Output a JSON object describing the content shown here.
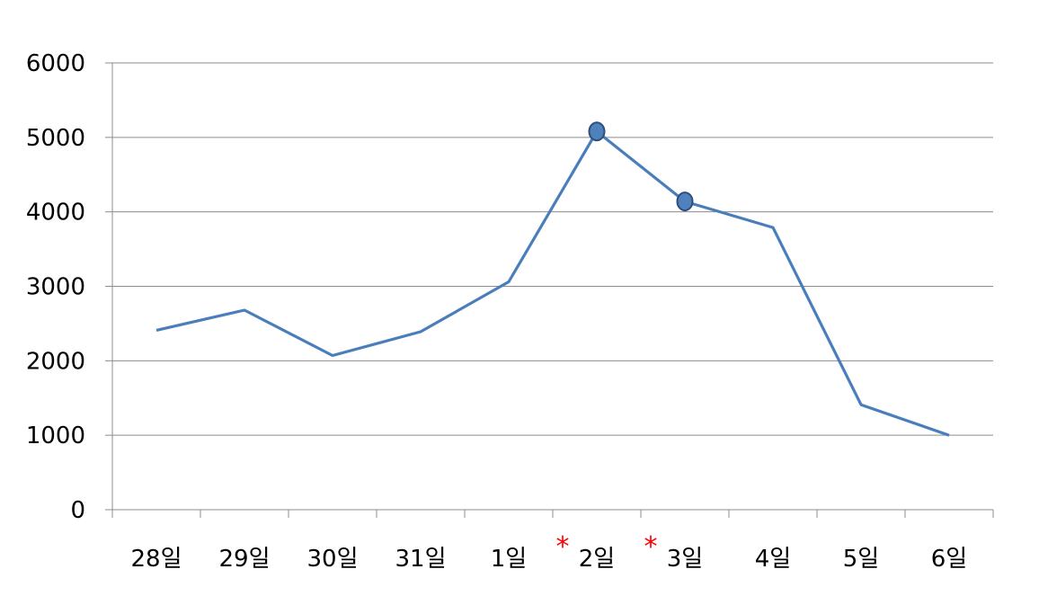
{
  "chart_data": {
    "type": "line",
    "categories": [
      "28일",
      "29일",
      "30일",
      "31일",
      "1일",
      "2일",
      "3일",
      "4일",
      "5일",
      "6일"
    ],
    "series": [
      {
        "values": [
          2410,
          2680,
          2070,
          2390,
          3060,
          5080,
          4140,
          3790,
          1410,
          1000
        ],
        "color": "#4a7ebb"
      }
    ],
    "ylim": [
      0,
      6000
    ],
    "yticks": [
      "0",
      "1000",
      "2000",
      "3000",
      "4000",
      "5000",
      "6000"
    ],
    "highlighted_indices": [
      5,
      6
    ],
    "annotations": [
      {
        "text": "*",
        "category_index": 5,
        "color": "#ff0000"
      },
      {
        "text": "*",
        "category_index": 6,
        "color": "#ff0000"
      }
    ],
    "grid": true,
    "marker_color": "#4f81bd",
    "marker_edge": "#2c4f7c"
  }
}
